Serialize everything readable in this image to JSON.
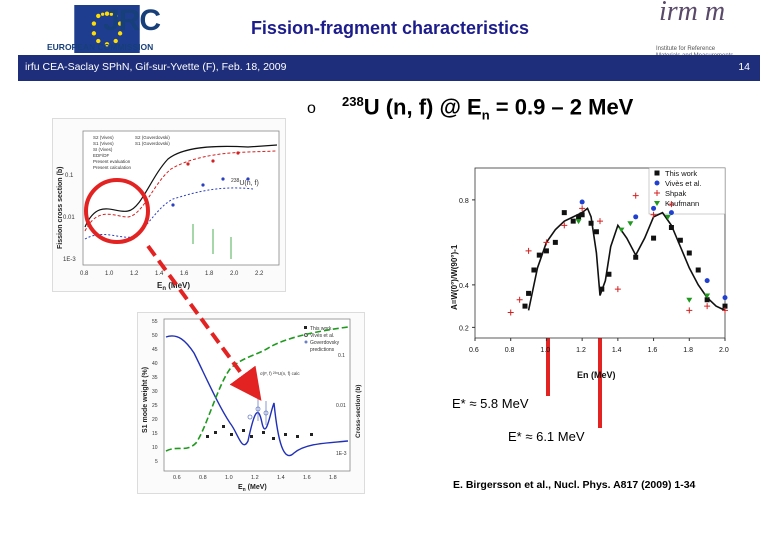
{
  "header": {
    "title": "Fission-fragment characteristics",
    "jrc_logo_text": "JRC",
    "ec_text": "EUROPEAN COMMISSION",
    "irmm_logo_text": "irm m",
    "irmm_subtitle": "Institute for Reference Materials and Measurements"
  },
  "strip": {
    "left_text": "irfu CEA-Saclay SPhN, Gif-sur-Yvette (F), Feb. 18, 2009",
    "page_number": "14"
  },
  "headline": {
    "bullet": "o",
    "mass": "238",
    "text_main": "U (n, f) @ E",
    "subscript": "n",
    "text_tail": " = 0.9 – 2 MeV"
  },
  "annotations": {
    "estar_1": "E* ≈ 5.8 MeV",
    "estar_2": "E* ≈ 6.1 MeV"
  },
  "reference": "E. Birgersson et al., Nucl. Phys. A817 (2009) 1-34",
  "colors": {
    "title": "#1c1c8c",
    "strip": "#1e2e7a",
    "highlight": "#e32222",
    "solid_curve": "#111111",
    "dashed_curve": "#1f9a1f",
    "blue_curve": "#2030b8"
  },
  "panel_top_left": {
    "ylabel": "Fission cross section (b)",
    "xlabel": "E",
    "xlabel_sub": "n",
    "xlabel_unit": " (MeV)",
    "reaction_label": "U(n, f)",
    "reaction_mass": "238",
    "y_ticks": [
      "0.1",
      "0.01",
      "1E-3"
    ],
    "x_ticks": [
      "0.8",
      "1.0",
      "1.2",
      "1.4",
      "1.6",
      "1.8",
      "2.0",
      "2.2"
    ],
    "legend": [
      "S2 (Vives)",
      "S1 (Vives)",
      "S2 (Goverdovski)",
      "S1 (Goverdovski)",
      "SI (Vives)",
      "EDF/DF",
      "Present evaluation",
      "Present calculation"
    ]
  },
  "panel_bottom_left": {
    "ylabel": "S1 mode weight (%)",
    "ylabel_right": "Cross-section (b)",
    "xlabel": "E",
    "xlabel_sub": "n",
    "xlabel_unit": " (MeV)",
    "y_ticks": [
      "55",
      "50",
      "45",
      "40",
      "35",
      "30",
      "25",
      "20",
      "15",
      "10",
      "5"
    ],
    "y_ticks_right": [
      "0.1",
      "0.01",
      "1E-3"
    ],
    "x_ticks": [
      "0.6",
      "0.8",
      "1.0",
      "1.2",
      "1.4",
      "1.6",
      "1.8",
      "2.0"
    ],
    "legend": [
      "This work",
      "Vivès et al.",
      "Goverdovsky"
    ],
    "legend_extra": "predictions",
    "curve_label": "σ(F, f) ²³⁸U(n, f) calc"
  },
  "chart_data": {
    "type": "scatter",
    "xlabel": "En (MeV)",
    "ylabel": "A=W(0°)/W(90°)-1",
    "xlim": [
      0.6,
      2.0
    ],
    "ylim": [
      0.15,
      0.95
    ],
    "x_ticks": [
      "0.6",
      "0.8",
      "1.0",
      "1.2",
      "1.4",
      "1.6",
      "1.8",
      "2.0"
    ],
    "y_ticks": [
      "0.8",
      "0.4",
      "0.2"
    ],
    "legend_placement": "top-right",
    "series": [
      {
        "name": "This work",
        "x": [
          0.88,
          0.9,
          0.93,
          0.96,
          1.0,
          1.05,
          1.1,
          1.15,
          1.18,
          1.2,
          1.25,
          1.28,
          1.31,
          1.35,
          1.5,
          1.6,
          1.7,
          1.75,
          1.8,
          1.85,
          1.9,
          2.0
        ],
        "y": [
          0.3,
          0.36,
          0.47,
          0.54,
          0.56,
          0.6,
          0.74,
          0.7,
          0.72,
          0.73,
          0.69,
          0.65,
          0.38,
          0.45,
          0.53,
          0.62,
          0.67,
          0.61,
          0.55,
          0.47,
          0.33,
          0.3
        ]
      },
      {
        "name": "Vivès et al.",
        "x": [
          1.2,
          1.5,
          1.6,
          1.7,
          1.9,
          2.0
        ],
        "y": [
          0.79,
          0.72,
          0.76,
          0.74,
          0.42,
          0.34
        ]
      },
      {
        "name": "Shpak",
        "x": [
          0.8,
          0.85,
          0.9,
          1.0,
          1.1,
          1.2,
          1.3,
          1.4,
          1.5,
          1.6,
          1.7,
          1.8,
          1.9,
          2.0
        ],
        "y": [
          0.27,
          0.33,
          0.56,
          0.6,
          0.68,
          0.76,
          0.7,
          0.38,
          0.82,
          0.73,
          0.78,
          0.28,
          0.3,
          0.28
        ]
      },
      {
        "name": "Kaufmann",
        "x": [
          1.18,
          1.42,
          1.47,
          1.68,
          1.8,
          1.9
        ],
        "y": [
          0.7,
          0.66,
          0.69,
          0.72,
          0.33,
          0.35
        ]
      }
    ],
    "fit_curve": {
      "x": [
        0.9,
        0.95,
        1.0,
        1.05,
        1.1,
        1.15,
        1.2,
        1.23,
        1.25,
        1.28,
        1.3,
        1.33,
        1.36,
        1.4,
        1.45,
        1.5,
        1.55,
        1.6,
        1.65,
        1.7,
        1.75,
        1.8,
        1.85,
        1.9,
        1.95,
        2.0
      ],
      "y": [
        0.28,
        0.48,
        0.6,
        0.66,
        0.7,
        0.72,
        0.74,
        0.76,
        0.72,
        0.55,
        0.35,
        0.42,
        0.58,
        0.68,
        0.62,
        0.54,
        0.62,
        0.72,
        0.74,
        0.68,
        0.58,
        0.48,
        0.4,
        0.34,
        0.3,
        0.28
      ]
    }
  }
}
